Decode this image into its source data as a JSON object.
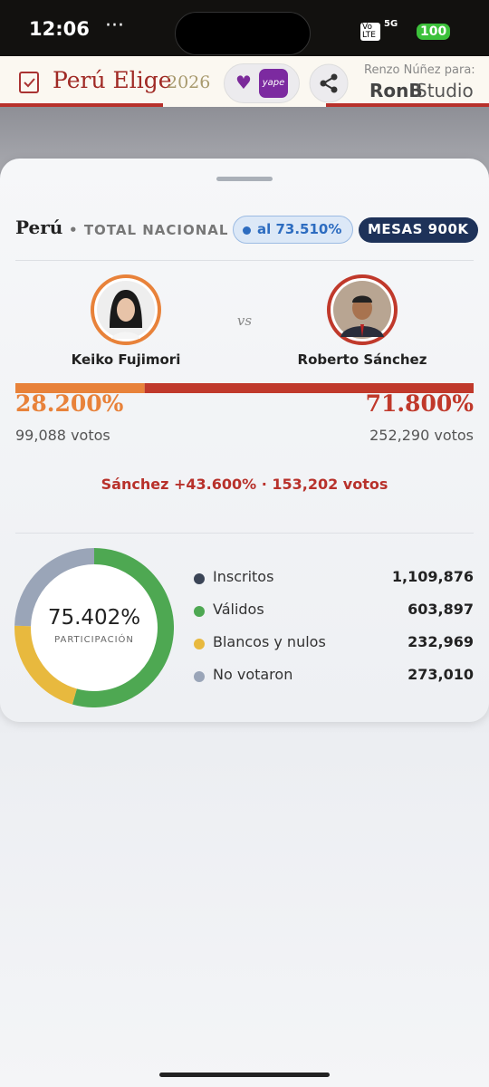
{
  "status_bar": {
    "time": "12:06",
    "dots": "···",
    "network": "5G",
    "volte": "Vo LTE",
    "battery": "100"
  },
  "header": {
    "brand": "Perú Elige",
    "year": "2026",
    "yape": "yape",
    "credit": "Renzo Núñez para:",
    "studio_a": "RonB",
    "studio_b": "Studio"
  },
  "card": {
    "region": "Perú",
    "scope": "TOTAL NACIONAL",
    "progress": "al 73.510%",
    "mesas": "MESAS 900K",
    "vs": "vs",
    "candidates": [
      {
        "name": "Keiko Fujimori",
        "color": "#e8823a",
        "share": {
          "value": 28.2,
          "label": "28.200%"
        },
        "votes": "99,088 votos"
      },
      {
        "name": "Roberto Sánchez",
        "color": "#c0392b",
        "share": {
          "value": 71.8,
          "label": "71.800%"
        },
        "votes": "252,290 votos"
      }
    ],
    "margin": "Sánchez +43.600% · 153,202 votos",
    "participation": {
      "value": 75.402,
      "label": "75.402%"
    },
    "participation_label": "PARTICIPACIÓN",
    "stats": [
      {
        "name": "Inscritos",
        "color": "#3b4556",
        "value": 1109876,
        "label": "1,109,876"
      },
      {
        "name": "Válidos",
        "color": "#4ea852",
        "value": 603897,
        "label": "603,897"
      },
      {
        "name": "Blancos y nulos",
        "color": "#e8b93e",
        "value": 232969,
        "label": "232,969"
      },
      {
        "name": "No votaron",
        "color": "#9aa5b8",
        "value": 273010,
        "label": "273,010"
      }
    ]
  }
}
